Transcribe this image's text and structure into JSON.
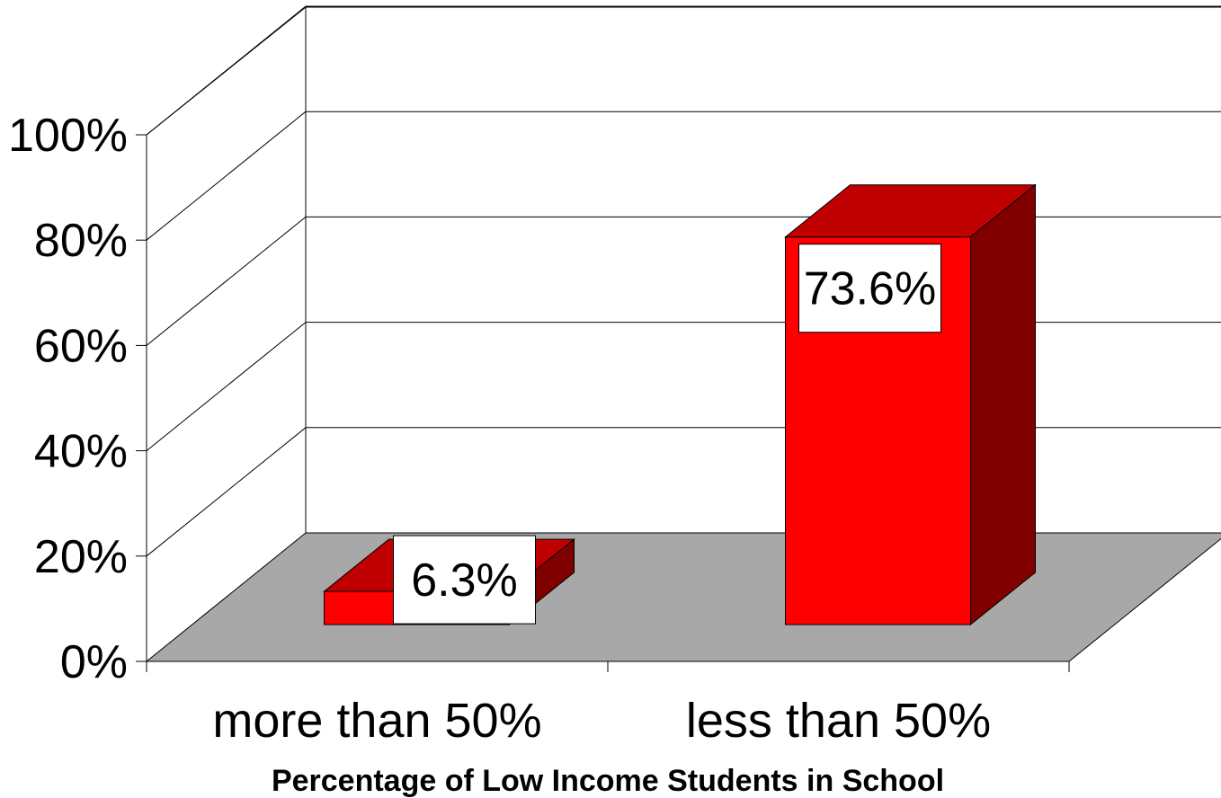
{
  "chart_data": {
    "type": "bar",
    "style": "3d-column",
    "categories": [
      "more than 50%",
      "less than 50%"
    ],
    "values": [
      6.3,
      73.6
    ],
    "data_labels": [
      "6.3%",
      "73.6%"
    ],
    "xlabel": "Percentage of Low Income Students in School",
    "ylabel": "",
    "ylim": [
      0,
      100
    ],
    "y_ticks": [
      "0%",
      "20%",
      "40%",
      "60%",
      "80%",
      "100%"
    ],
    "y_tick_values": [
      0,
      20,
      40,
      60,
      80,
      100
    ],
    "grid": true,
    "legend": "none",
    "colors": {
      "bar_front": "#ff0000",
      "bar_top": "#c00000",
      "bar_side": "#800000",
      "floor": "#a8a8a8",
      "grid": "#000000",
      "label_box": "#ffffff"
    }
  }
}
